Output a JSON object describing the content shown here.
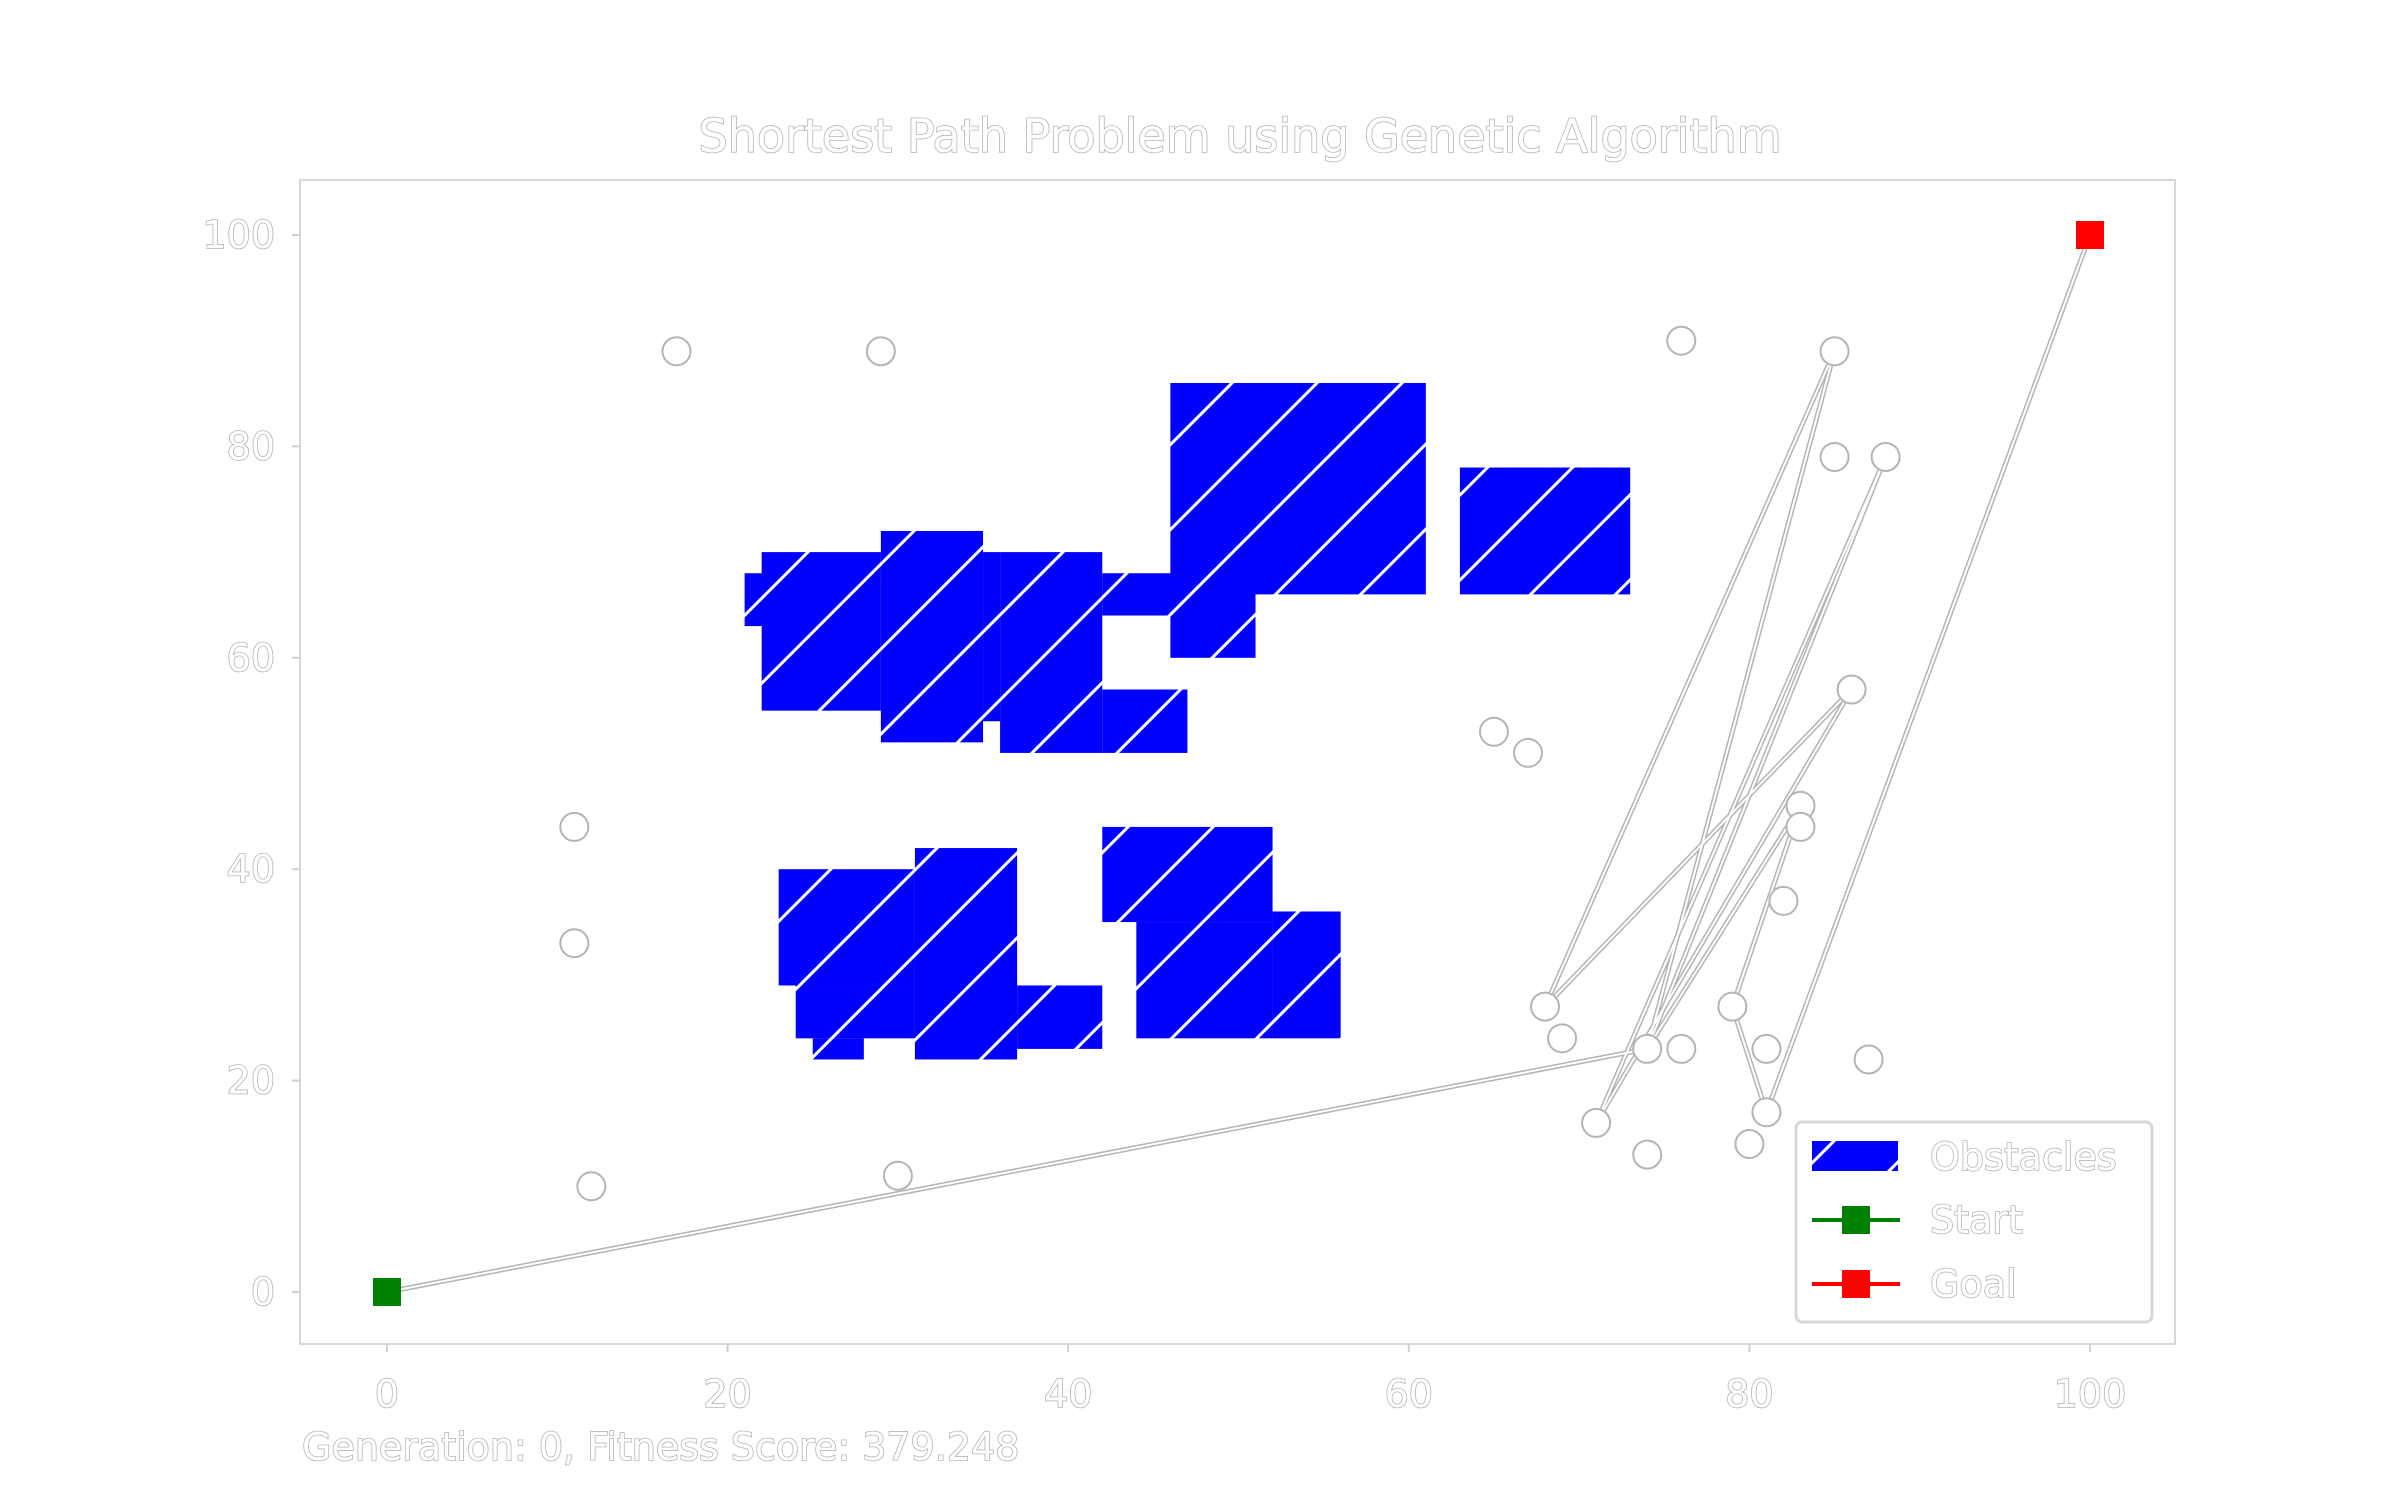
{
  "chart_data": {
    "type": "scatter",
    "title": "Shortest Path Problem using Genetic Algorithm",
    "xlabel": "",
    "ylabel": "",
    "xlim": [
      -5,
      105
    ],
    "ylim": [
      -5,
      105
    ],
    "x_ticks": [
      0,
      20,
      40,
      60,
      80,
      100
    ],
    "y_ticks": [
      0,
      20,
      40,
      60,
      80,
      100
    ],
    "grid": false,
    "legend_position": "bottom-right",
    "legend": [
      {
        "label": "Obstacles",
        "marker": "hatched-rect",
        "color": "#0000ff"
      },
      {
        "label": "Start",
        "marker": "square-line",
        "color": "#008000"
      },
      {
        "label": "Goal",
        "marker": "square-line",
        "color": "#ff0000"
      }
    ],
    "start": {
      "x": 0,
      "y": 0
    },
    "goal": {
      "x": 100,
      "y": 100
    },
    "obstacles": [
      {
        "x": 22,
        "y": 55,
        "w": 7,
        "h": 15
      },
      {
        "x": 21,
        "y": 63,
        "w": 2,
        "h": 5
      },
      {
        "x": 29,
        "y": 52,
        "w": 6,
        "h": 20
      },
      {
        "x": 35,
        "y": 54,
        "w": 1,
        "h": 16
      },
      {
        "x": 36,
        "y": 51,
        "w": 6,
        "h": 19
      },
      {
        "x": 42,
        "y": 51,
        "w": 5,
        "h": 6
      },
      {
        "x": 42,
        "y": 64,
        "w": 5,
        "h": 4
      },
      {
        "x": 46,
        "y": 60,
        "w": 5,
        "h": 8
      },
      {
        "x": 46,
        "y": 66,
        "w": 15,
        "h": 20
      },
      {
        "x": 63,
        "y": 66,
        "w": 10,
        "h": 12
      },
      {
        "x": 23,
        "y": 29,
        "w": 8,
        "h": 11
      },
      {
        "x": 24,
        "y": 24,
        "w": 7,
        "h": 5
      },
      {
        "x": 25,
        "y": 22,
        "w": 3,
        "h": 2
      },
      {
        "x": 31,
        "y": 22,
        "w": 6,
        "h": 20
      },
      {
        "x": 37,
        "y": 23,
        "w": 5,
        "h": 6
      },
      {
        "x": 42,
        "y": 35,
        "w": 10,
        "h": 9
      },
      {
        "x": 44,
        "y": 24,
        "w": 8,
        "h": 11
      },
      {
        "x": 52,
        "y": 24,
        "w": 4,
        "h": 12
      }
    ],
    "waypoints": [
      {
        "x": 17,
        "y": 89
      },
      {
        "x": 29,
        "y": 89
      },
      {
        "x": 11,
        "y": 44
      },
      {
        "x": 11,
        "y": 33
      },
      {
        "x": 12,
        "y": 10
      },
      {
        "x": 30,
        "y": 11
      },
      {
        "x": 65,
        "y": 53
      },
      {
        "x": 67,
        "y": 51
      },
      {
        "x": 76,
        "y": 90
      },
      {
        "x": 85,
        "y": 89
      },
      {
        "x": 85,
        "y": 79
      },
      {
        "x": 88,
        "y": 79
      },
      {
        "x": 86,
        "y": 57
      },
      {
        "x": 83,
        "y": 46
      },
      {
        "x": 83,
        "y": 44
      },
      {
        "x": 82,
        "y": 37
      },
      {
        "x": 68,
        "y": 27
      },
      {
        "x": 69,
        "y": 24
      },
      {
        "x": 71,
        "y": 16
      },
      {
        "x": 74,
        "y": 13
      },
      {
        "x": 74,
        "y": 23
      },
      {
        "x": 76,
        "y": 23
      },
      {
        "x": 79,
        "y": 27
      },
      {
        "x": 81,
        "y": 23
      },
      {
        "x": 81,
        "y": 17
      },
      {
        "x": 80,
        "y": 14
      },
      {
        "x": 87,
        "y": 22
      }
    ],
    "path": [
      {
        "x": 0,
        "y": 0
      },
      {
        "x": 74,
        "y": 23
      },
      {
        "x": 85,
        "y": 89
      },
      {
        "x": 68,
        "y": 27
      },
      {
        "x": 86,
        "y": 57
      },
      {
        "x": 71,
        "y": 16
      },
      {
        "x": 88,
        "y": 79
      },
      {
        "x": 74,
        "y": 23
      },
      {
        "x": 83,
        "y": 46
      },
      {
        "x": 79,
        "y": 27
      },
      {
        "x": 81,
        "y": 17
      },
      {
        "x": 100,
        "y": 100
      }
    ]
  },
  "status": {
    "generation_text": "Generation: 0, Fitness Score: 379.248"
  },
  "colors": {
    "obstacle": "#0000ff",
    "start": "#008000",
    "goal": "#ff0000",
    "outline": "#b4b4b4"
  }
}
